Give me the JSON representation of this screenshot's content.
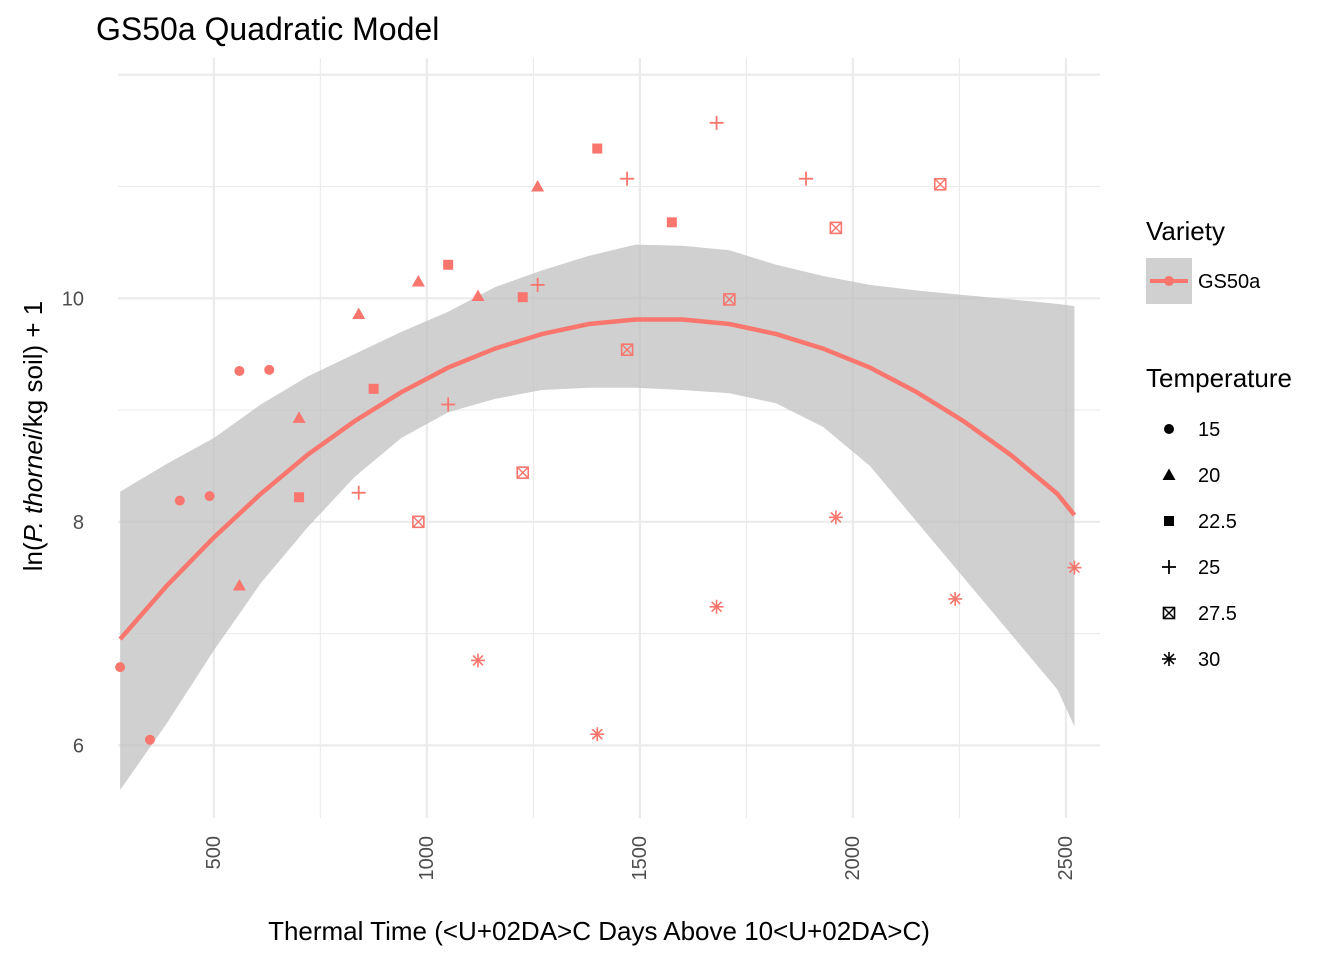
{
  "chart_data": {
    "type": "scatter",
    "title": "GS50a Quadratic Model",
    "xlabel": "Thermal Time (<U+02DA>C Days Above 10<U+02DA>C)",
    "ylabel_parts": [
      "ln(",
      "P. thornei",
      "/kg soil) + 1"
    ],
    "xlim": [
      275,
      2580
    ],
    "ylim": [
      5.35,
      12.15
    ],
    "x_ticks": [
      500,
      1000,
      1500,
      2000,
      2500
    ],
    "x_tick_labels": [
      "500",
      "1000",
      "1500",
      "2000",
      "2500"
    ],
    "y_ticks": [
      6,
      8,
      10
    ],
    "y_tick_labels": [
      "6",
      "8",
      "10"
    ],
    "grid": true,
    "color": "#F8766D",
    "series": [
      {
        "temperature": "15",
        "shape": "circle",
        "points": [
          [
            280,
            6.7
          ],
          [
            350,
            6.05
          ],
          [
            420,
            8.19
          ],
          [
            490,
            8.23
          ],
          [
            560,
            9.35
          ],
          [
            630,
            9.36
          ]
        ]
      },
      {
        "temperature": "20",
        "shape": "triangle",
        "points": [
          [
            560,
            7.43
          ],
          [
            700,
            8.93
          ],
          [
            840,
            9.86
          ],
          [
            980,
            10.15
          ],
          [
            1120,
            10.02
          ],
          [
            1260,
            11.0
          ]
        ]
      },
      {
        "temperature": "22.5",
        "shape": "square",
        "points": [
          [
            700,
            8.22
          ],
          [
            875,
            9.19
          ],
          [
            1050,
            10.3
          ],
          [
            1225,
            10.01
          ],
          [
            1400,
            11.34
          ],
          [
            1575,
            10.68
          ]
        ]
      },
      {
        "temperature": "25",
        "shape": "plus",
        "points": [
          [
            840,
            8.26
          ],
          [
            1050,
            9.05
          ],
          [
            1260,
            10.12
          ],
          [
            1470,
            11.07
          ],
          [
            1680,
            11.57
          ],
          [
            1890,
            11.07
          ]
        ]
      },
      {
        "temperature": "27.5",
        "shape": "boxx",
        "points": [
          [
            980,
            8.0
          ],
          [
            1225,
            8.44
          ],
          [
            1470,
            9.54
          ],
          [
            1710,
            9.99
          ],
          [
            1960,
            10.63
          ],
          [
            2205,
            11.02
          ]
        ]
      },
      {
        "temperature": "30",
        "shape": "star",
        "points": [
          [
            1120,
            6.76
          ],
          [
            1400,
            6.1
          ],
          [
            1680,
            7.24
          ],
          [
            1960,
            8.04
          ],
          [
            2240,
            7.31
          ],
          [
            2520,
            7.59
          ]
        ]
      }
    ],
    "fit": {
      "type": "quadratic",
      "x": [
        280,
        390,
        500,
        610,
        720,
        830,
        940,
        1050,
        1160,
        1270,
        1380,
        1490,
        1600,
        1710,
        1820,
        1930,
        2040,
        2150,
        2260,
        2370,
        2480,
        2520
      ],
      "y": [
        6.95,
        7.43,
        7.86,
        8.25,
        8.6,
        8.9,
        9.16,
        9.38,
        9.55,
        9.68,
        9.77,
        9.81,
        9.81,
        9.77,
        9.68,
        9.55,
        9.38,
        9.16,
        8.9,
        8.6,
        8.25,
        8.06
      ],
      "ci_lower": [
        5.6,
        6.2,
        6.85,
        7.45,
        7.95,
        8.4,
        8.75,
        8.98,
        9.1,
        9.18,
        9.2,
        9.2,
        9.18,
        9.15,
        9.06,
        8.85,
        8.5,
        8.0,
        7.5,
        7.0,
        6.5,
        6.17
      ],
      "ci_upper": [
        8.27,
        8.52,
        8.75,
        9.05,
        9.3,
        9.5,
        9.7,
        9.88,
        10.1,
        10.25,
        10.38,
        10.48,
        10.47,
        10.43,
        10.3,
        10.2,
        10.12,
        10.07,
        10.03,
        9.99,
        9.95,
        9.93
      ],
      "band_color": "#bebebe"
    },
    "legend": {
      "placement": "right",
      "variety_title": "Variety",
      "variety_items": [
        "GS50a"
      ],
      "temperature_title": "Temperature",
      "temperature_items": [
        "15",
        "20",
        "22.5",
        "25",
        "27.5",
        "30"
      ]
    }
  }
}
